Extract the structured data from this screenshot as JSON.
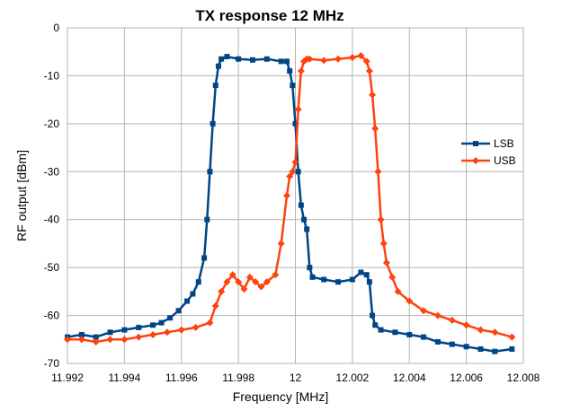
{
  "chart_data": {
    "type": "line",
    "title": "TX response 12 MHz",
    "xlabel": "Frequency [MHz]",
    "ylabel": "RF output [dBm]",
    "xlim": [
      11.992,
      12.008
    ],
    "ylim": [
      -70,
      0
    ],
    "x_ticks": [
      "11.992",
      "11.994",
      "11.996",
      "11.998",
      "12",
      "12.002",
      "12.004",
      "12.006",
      "12.008"
    ],
    "y_ticks": [
      "0",
      "-10",
      "-20",
      "-30",
      "-40",
      "-50",
      "-60",
      "-70"
    ],
    "grid": true,
    "legend_position": "right",
    "series": [
      {
        "name": "LSB",
        "color": "#004586",
        "marker": "square",
        "x": [
          11.992,
          11.9925,
          11.993,
          11.9935,
          11.994,
          11.9945,
          11.995,
          11.9953,
          11.9956,
          11.9959,
          11.9962,
          11.9964,
          11.9966,
          11.9968,
          11.9969,
          11.997,
          11.9971,
          11.9972,
          11.9973,
          11.9974,
          11.9976,
          11.998,
          11.9985,
          11.999,
          11.9995,
          11.9997,
          11.9998,
          11.9999,
          12.0,
          12.0001,
          12.0002,
          12.0003,
          12.0004,
          12.0005,
          12.0006,
          12.001,
          12.0015,
          12.002,
          12.0023,
          12.0025,
          12.0026,
          12.0027,
          12.0028,
          12.003,
          12.0035,
          12.004,
          12.0045,
          12.005,
          12.0055,
          12.006,
          12.0065,
          12.007,
          12.0076
        ],
        "y": [
          -64.5,
          -64,
          -64.5,
          -63.5,
          -63,
          -62.5,
          -62,
          -61.5,
          -60.5,
          -59,
          -57,
          -55.5,
          -53,
          -48,
          -40,
          -30,
          -20,
          -12,
          -8,
          -6.5,
          -6,
          -6.5,
          -6.7,
          -6.5,
          -7,
          -7,
          -9,
          -12,
          -20,
          -30,
          -37,
          -40,
          -42,
          -50,
          -52,
          -52.5,
          -53,
          -52.5,
          -51,
          -51.5,
          -53,
          -60,
          -62,
          -63,
          -63.5,
          -64,
          -64.5,
          -65.5,
          -66,
          -66.5,
          -67,
          -67.5,
          -67
        ]
      },
      {
        "name": "USB",
        "color": "#ff420e",
        "marker": "diamond",
        "x": [
          11.992,
          11.9925,
          11.993,
          11.9935,
          11.994,
          11.9945,
          11.995,
          11.9955,
          11.996,
          11.9965,
          11.997,
          11.9972,
          11.9974,
          11.9976,
          11.9978,
          11.998,
          11.9982,
          11.9984,
          11.9986,
          11.9988,
          11.999,
          11.9993,
          11.9995,
          11.9997,
          11.9998,
          11.9999,
          12.0,
          12.0001,
          12.0002,
          12.0003,
          12.0004,
          12.0005,
          12.001,
          12.0015,
          12.002,
          12.0023,
          12.0025,
          12.0026,
          12.0027,
          12.0028,
          12.0029,
          12.003,
          12.0031,
          12.0032,
          12.0034,
          12.0036,
          12.004,
          12.0045,
          12.005,
          12.0055,
          12.006,
          12.0065,
          12.007,
          12.0076
        ],
        "y": [
          -65,
          -65,
          -65.5,
          -65,
          -65,
          -64.5,
          -64,
          -63.5,
          -63,
          -62.5,
          -61.5,
          -58,
          -55,
          -53,
          -51.5,
          -53,
          -54.5,
          -52,
          -53,
          -54,
          -53,
          -51.5,
          -45,
          -35,
          -31,
          -30,
          -28,
          -17,
          -9,
          -7,
          -6.5,
          -6.5,
          -6.8,
          -6.5,
          -6.2,
          -5.8,
          -7,
          -9,
          -14,
          -21,
          -30,
          -40,
          -45,
          -49,
          -52,
          -55,
          -57,
          -59,
          -60,
          -61,
          -62,
          -63,
          -63.5,
          -64.5
        ]
      }
    ]
  }
}
